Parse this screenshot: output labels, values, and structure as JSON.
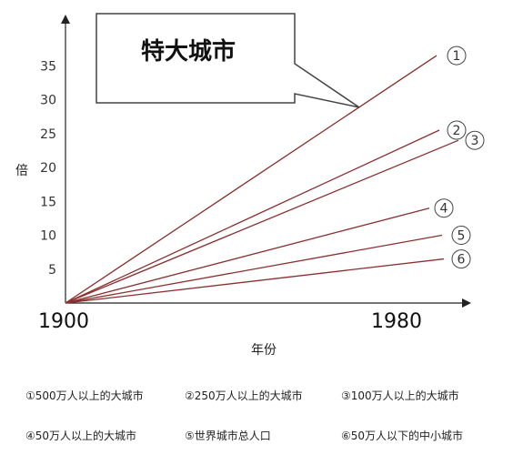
{
  "chart_data": {
    "type": "line",
    "title": "",
    "ylabel": "倍",
    "xlabel": "年份",
    "x": [
      1900,
      1980
    ],
    "x_tick_labels": [
      "1900",
      "1980"
    ],
    "ylim": [
      0,
      38
    ],
    "y_ticks": [
      5,
      10,
      15,
      20,
      25,
      30,
      35
    ],
    "callout": "特大城市",
    "series": [
      {
        "name": "①",
        "values": [
          0,
          36.5
        ],
        "color": "#8b2f2f"
      },
      {
        "name": "②",
        "values": [
          0,
          25.5
        ],
        "color": "#8b2f2f"
      },
      {
        "name": "③",
        "values": [
          0,
          24.0
        ],
        "color": "#8b2f2f"
      },
      {
        "name": "④",
        "values": [
          0,
          14.0
        ],
        "color": "#8b2f2f"
      },
      {
        "name": "⑤",
        "values": [
          0,
          10.0
        ],
        "color": "#8b2f2f"
      },
      {
        "name": "⑥",
        "values": [
          0,
          6.5
        ],
        "color": "#8b2f2f"
      }
    ]
  },
  "legend": [
    [
      "①500万人以上的大城市",
      "②250万人以上的大城市",
      "③100万人以上的大城市"
    ],
    [
      "④50万人以上的大城市",
      "⑤世界城市总人口",
      "⑥50万人以下的中小城市"
    ]
  ]
}
